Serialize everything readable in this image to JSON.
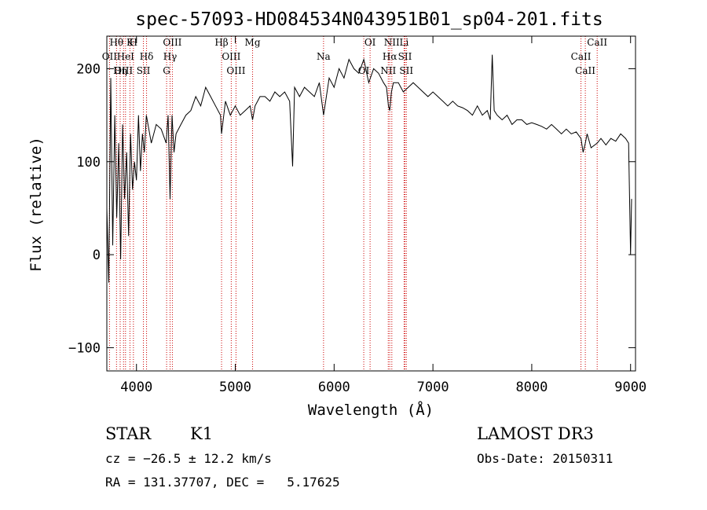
{
  "chart_data": {
    "type": "line",
    "title": "spec-57093-HD084534N043951B01_sp04-201.fits",
    "xlabel": "Wavelength (Å)",
    "ylabel": "Flux (relative)",
    "xlim": [
      3700,
      9050
    ],
    "ylim": [
      -125,
      235
    ],
    "xticks": [
      4000,
      5000,
      6000,
      7000,
      8000,
      9000
    ],
    "yticks": [
      -100,
      0,
      100,
      200
    ],
    "series": [
      {
        "name": "flux",
        "x": [
          3700,
          3720,
          3740,
          3760,
          3780,
          3800,
          3820,
          3840,
          3860,
          3880,
          3900,
          3920,
          3940,
          3960,
          3980,
          4000,
          4020,
          4040,
          4060,
          4080,
          4100,
          4150,
          4200,
          4250,
          4300,
          4320,
          4340,
          4360,
          4380,
          4400,
          4450,
          4500,
          4550,
          4600,
          4650,
          4700,
          4750,
          4800,
          4850,
          4861,
          4900,
          4950,
          5000,
          5050,
          5100,
          5150,
          5175,
          5200,
          5250,
          5300,
          5350,
          5400,
          5450,
          5500,
          5550,
          5580,
          5600,
          5650,
          5700,
          5750,
          5800,
          5850,
          5893,
          5950,
          6000,
          6050,
          6100,
          6150,
          6200,
          6250,
          6300,
          6350,
          6400,
          6450,
          6500,
          6530,
          6550,
          6563,
          6580,
          6600,
          6650,
          6700,
          6750,
          6800,
          6850,
          6900,
          6950,
          7000,
          7050,
          7100,
          7150,
          7200,
          7250,
          7300,
          7350,
          7400,
          7450,
          7500,
          7550,
          7580,
          7600,
          7620,
          7650,
          7700,
          7750,
          7800,
          7850,
          7900,
          7950,
          8000,
          8050,
          8100,
          8150,
          8200,
          8250,
          8300,
          8350,
          8400,
          8450,
          8498,
          8520,
          8542,
          8560,
          8600,
          8662,
          8700,
          8750,
          8800,
          8850,
          8900,
          8950,
          8980,
          9000,
          9010
        ],
        "y": [
          50,
          -30,
          190,
          10,
          150,
          40,
          120,
          -5,
          140,
          60,
          110,
          20,
          130,
          70,
          100,
          80,
          150,
          90,
          130,
          110,
          150,
          120,
          140,
          135,
          120,
          150,
          60,
          150,
          110,
          130,
          140,
          150,
          155,
          170,
          160,
          180,
          170,
          160,
          150,
          130,
          165,
          150,
          160,
          150,
          155,
          160,
          145,
          160,
          170,
          170,
          165,
          175,
          170,
          175,
          165,
          95,
          180,
          170,
          180,
          175,
          170,
          185,
          150,
          190,
          180,
          200,
          190,
          210,
          200,
          195,
          210,
          185,
          200,
          195,
          185,
          180,
          160,
          155,
          175,
          185,
          185,
          175,
          180,
          185,
          180,
          175,
          170,
          175,
          170,
          165,
          160,
          165,
          160,
          158,
          155,
          150,
          160,
          150,
          155,
          145,
          215,
          155,
          150,
          145,
          150,
          140,
          145,
          145,
          140,
          142,
          140,
          138,
          135,
          140,
          135,
          130,
          135,
          130,
          132,
          125,
          110,
          120,
          130,
          115,
          120,
          125,
          118,
          125,
          122,
          130,
          125,
          120,
          0,
          60
        ]
      }
    ],
    "spectral_lines": [
      {
        "label": "Hθ",
        "wavelength": 3798
      },
      {
        "label": "OII",
        "wavelength": 3727
      },
      {
        "label": "OIII",
        "wavelength": 3869
      },
      {
        "label": "K",
        "wavelength": 3934
      },
      {
        "label": "HeI",
        "wavelength": 3889
      },
      {
        "label": "Hη",
        "wavelength": 3835
      },
      {
        "label": "H",
        "wavelength": 3969
      },
      {
        "label": "Hδ",
        "wavelength": 4102
      },
      {
        "label": "SII",
        "wavelength": 4070
      },
      {
        "label": "OIII",
        "wavelength": 4363
      },
      {
        "label": "Hγ",
        "wavelength": 4340
      },
      {
        "label": "G",
        "wavelength": 4305
      },
      {
        "label": "Hβ",
        "wavelength": 4861
      },
      {
        "label": "OIII",
        "wavelength": 4959
      },
      {
        "label": "OIII",
        "wavelength": 5007
      },
      {
        "label": "Mg",
        "wavelength": 5175
      },
      {
        "label": "Na",
        "wavelength": 5893
      },
      {
        "label": "OI",
        "wavelength": 6300
      },
      {
        "label": "OI",
        "wavelength": 6364
      },
      {
        "label": "Hα",
        "wavelength": 6563
      },
      {
        "label": "NII",
        "wavelength": 6548
      },
      {
        "label": "NII",
        "wavelength": 6584
      },
      {
        "label": "SII",
        "wavelength": 6717
      },
      {
        "label": "SII",
        "wavelength": 6731
      },
      {
        "label": "Li",
        "wavelength": 6708
      },
      {
        "label": "CaII",
        "wavelength": 8498
      },
      {
        "label": "CaII",
        "wavelength": 8542
      },
      {
        "label": "CaII",
        "wavelength": 8662
      }
    ]
  },
  "info": {
    "class_label": "STAR",
    "subclass": "K1",
    "survey": "LAMOST DR3",
    "cz": "cz = −26.5 ± 12.2 km/s",
    "obs_date": "Obs-Date: 20150311",
    "coords": "RA = 131.37707, DEC =   5.17625"
  },
  "colors": {
    "axis": "#000000",
    "line": "#000000",
    "marker_line": "#cc0000"
  }
}
